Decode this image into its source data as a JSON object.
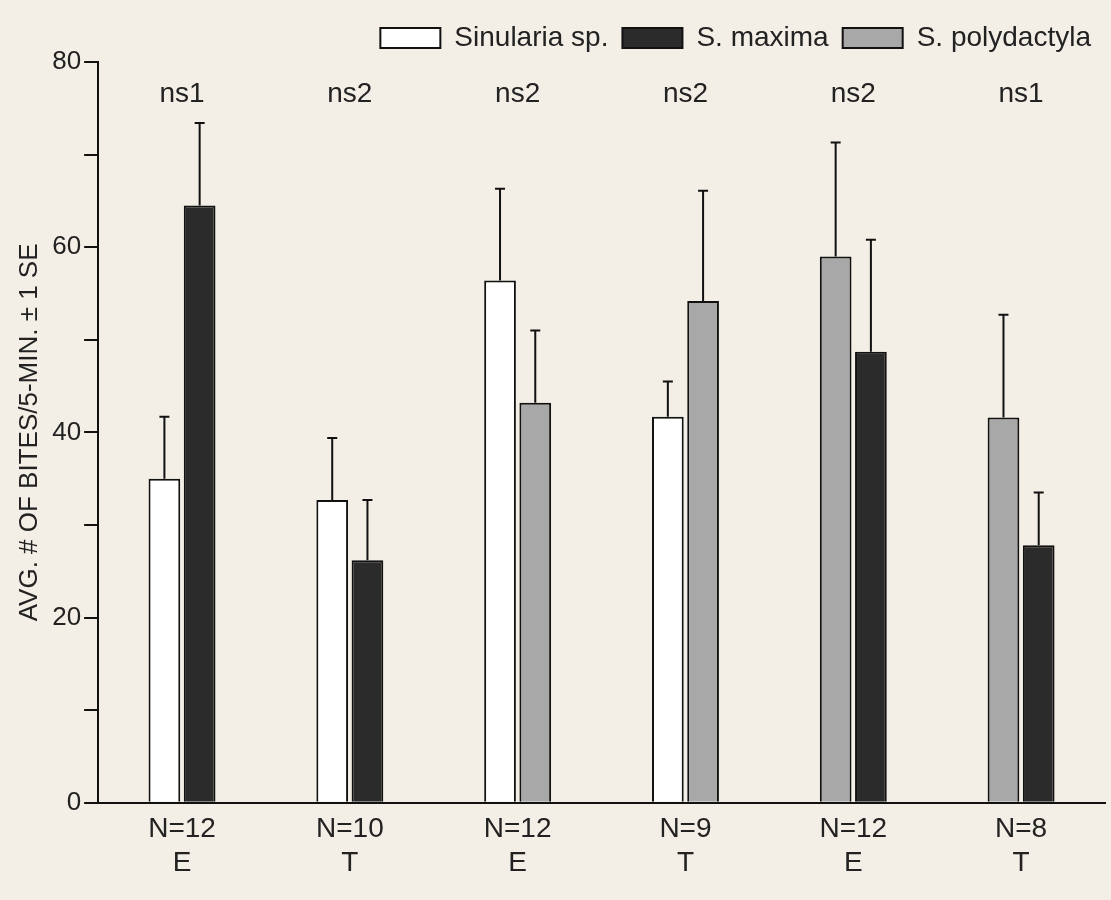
{
  "chart_data": {
    "type": "bar",
    "ylabel": "AVG. # OF BITES/5-MIN. ± 1 SE",
    "categories": [
      "N=12\nE",
      "N=10\nT",
      "N=12\nE",
      "N=9\nT",
      "N=12\nE",
      "N=8\nT"
    ],
    "series": [
      {
        "name": "Sinularia sp.",
        "color": "#ffffff",
        "values": [
          35,
          32.7,
          56.4,
          41.7,
          null,
          null
        ],
        "errors": [
          [
            35,
            41.7
          ],
          [
            32.7,
            39.4
          ],
          [
            56.4,
            66.3
          ],
          [
            41.7,
            45.5
          ],
          null,
          null
        ]
      },
      {
        "name": "S. maxima",
        "color": "#2b2b2b",
        "values": [
          64.5,
          26.2,
          null,
          null,
          48.7,
          27.8
        ],
        "errors": [
          [
            64.5,
            73.4
          ],
          [
            26.2,
            32.7
          ],
          null,
          null,
          [
            48.7,
            60.8
          ],
          [
            27.8,
            33.5
          ]
        ]
      },
      {
        "name": "S. polydactyla",
        "color": "#a8a8a8",
        "values": [
          null,
          null,
          43.2,
          54.2,
          59,
          41.6
        ],
        "errors": [
          null,
          null,
          [
            43.2,
            51
          ],
          [
            54.2,
            66.1
          ],
          [
            59,
            71.3
          ],
          [
            41.6,
            52.7
          ]
        ]
      }
    ],
    "ylim": [
      0,
      80
    ],
    "yticks": [
      0,
      {
        "value": 10,
        "label": null
      },
      20,
      {
        "value": 30,
        "label": null
      },
      40,
      {
        "value": 50,
        "label": null
      },
      60,
      {
        "value": 70,
        "label": null
      },
      80
    ],
    "annotations": [
      "ns1",
      "ns2",
      "ns2",
      "ns2",
      "ns2",
      "ns1"
    ],
    "legend": "top right",
    "grid": false
  }
}
